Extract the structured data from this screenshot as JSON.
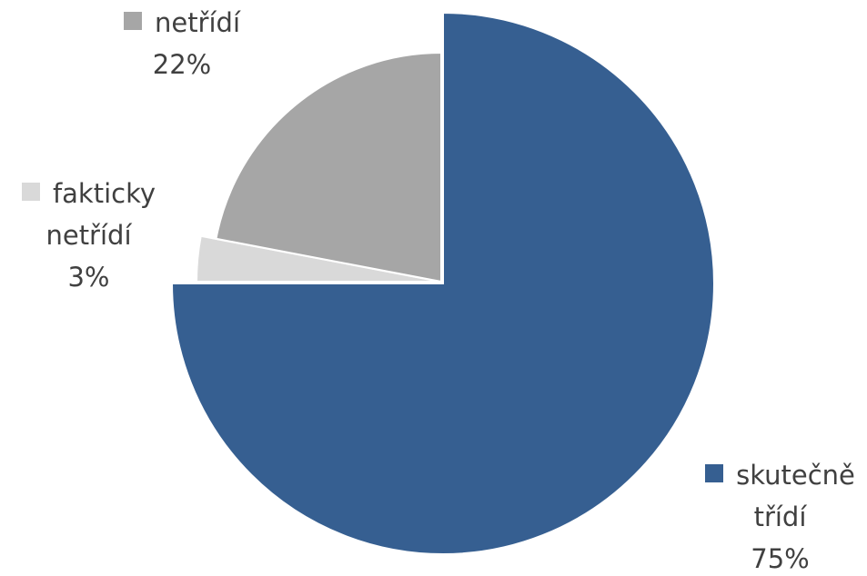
{
  "chart_data": {
    "type": "pie",
    "categories": [
      "skutečně třídí",
      "fakticky netřídí",
      "netřídí"
    ],
    "values": [
      75,
      3,
      22
    ],
    "value_labels": [
      "75%",
      "3%",
      "22%"
    ],
    "colors": [
      "#365f91",
      "#d9d9d9",
      "#a6a6a6"
    ]
  }
}
